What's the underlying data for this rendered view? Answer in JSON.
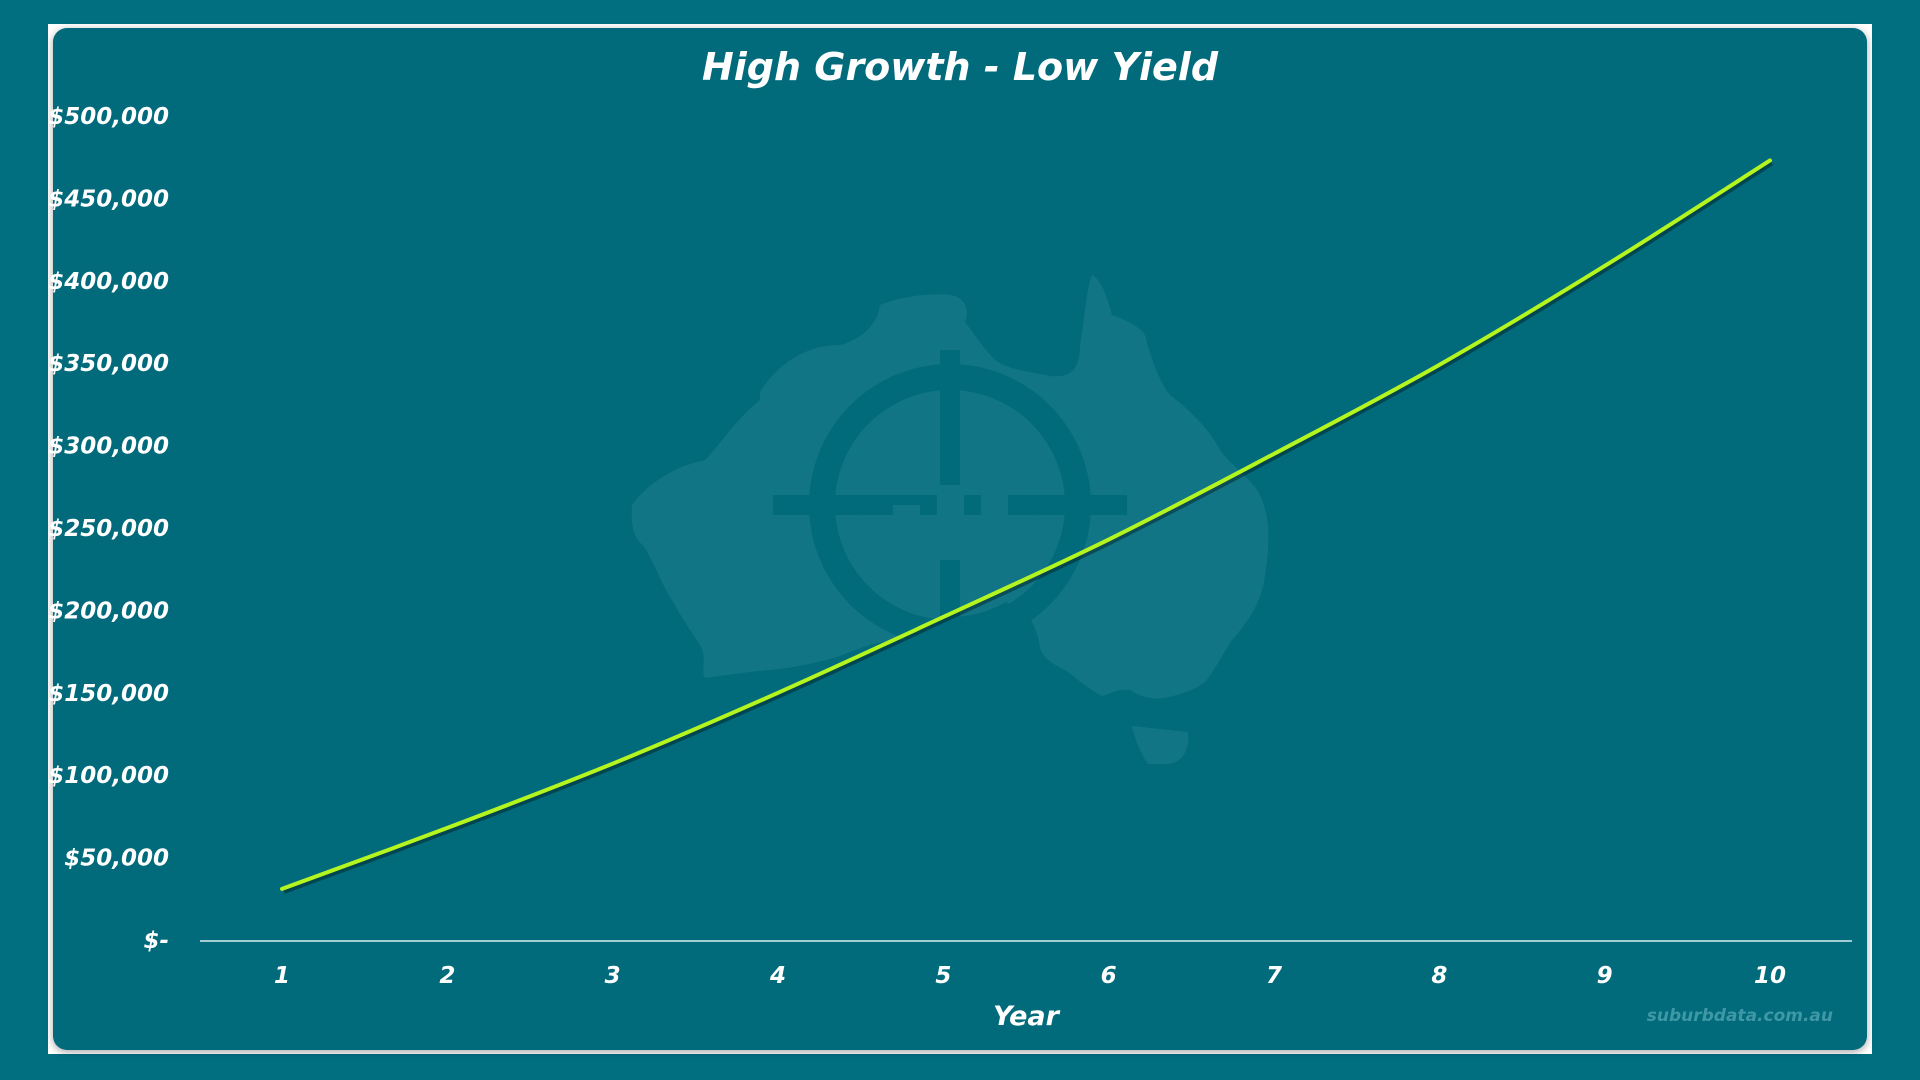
{
  "chart_data": {
    "type": "line",
    "title": "High Growth - Low Yield",
    "xlabel": "Year",
    "ylabel": "",
    "x": [
      1,
      2,
      3,
      4,
      5,
      6,
      7,
      8,
      9,
      10
    ],
    "categories": [
      "1",
      "2",
      "3",
      "4",
      "5",
      "6",
      "7",
      "8",
      "9",
      "10"
    ],
    "series": [
      {
        "values": [
          31000,
          68000,
          107000,
          150000,
          196000,
          243000,
          295000,
          349000,
          409000,
          473000
        ]
      }
    ],
    "ylim": [
      0,
      500000
    ],
    "yticks": [
      0,
      50000,
      100000,
      150000,
      200000,
      250000,
      300000,
      350000,
      400000,
      450000,
      500000
    ],
    "ytick_labels": [
      "$-",
      "$50,000",
      "$100,000",
      "$150,000",
      "$200,000",
      "$250,000",
      "$300,000",
      "$350,000",
      "$400,000",
      "$450,000",
      "$500,000"
    ],
    "grid": false,
    "legend": "none",
    "line_color": "#b5f51f",
    "background_color": "#016b7b",
    "watermark": "suburbdata.com.au",
    "logo_icon": "australia-map-target-logo"
  }
}
